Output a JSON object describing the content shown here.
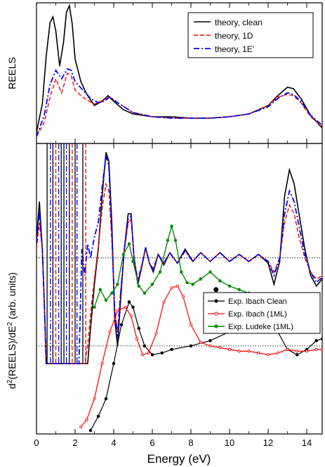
{
  "colors": {
    "clean": "#000000",
    "d1": "#ff0000",
    "e1": "#0000ff",
    "ibach_clean": "#000000",
    "ibach_1ml": "#ff0000",
    "ludeke_1ml": "#008c00"
  },
  "chart_data": [
    {
      "type": "line",
      "panel": "top",
      "ylabel": "REELS",
      "xlim": [
        0,
        14.8
      ],
      "ylim": [
        0,
        1.0
      ],
      "grid": false,
      "legend_position": "top-right",
      "series": [
        {
          "name": "theory, clean",
          "style": "solid",
          "x": [
            0,
            0.3,
            0.5,
            0.7,
            0.85,
            1.0,
            1.2,
            1.4,
            1.55,
            1.7,
            1.85,
            2.0,
            2.3,
            2.6,
            3.0,
            3.4,
            3.7,
            4.0,
            4.5,
            5.0,
            6.0,
            7.0,
            8.0,
            9.0,
            10.0,
            11.0,
            12.0,
            12.5,
            13.0,
            13.3,
            13.7,
            14.2,
            14.8
          ],
          "y": [
            0.08,
            0.28,
            0.62,
            0.86,
            0.9,
            0.8,
            0.55,
            0.72,
            0.93,
            0.98,
            0.85,
            0.6,
            0.44,
            0.35,
            0.27,
            0.3,
            0.34,
            0.3,
            0.24,
            0.21,
            0.19,
            0.19,
            0.18,
            0.18,
            0.19,
            0.21,
            0.27,
            0.34,
            0.4,
            0.39,
            0.32,
            0.2,
            0.11
          ]
        },
        {
          "name": "theory, 1D",
          "style": "dashed",
          "x": [
            0,
            0.4,
            0.7,
            1.0,
            1.3,
            1.6,
            1.8,
            2.0,
            2.3,
            2.6,
            3.0,
            3.5,
            3.8,
            4.2,
            5.0,
            6.0,
            7.0,
            8.0,
            9.0,
            10.0,
            11.0,
            12.0,
            12.5,
            13.0,
            13.3,
            13.7,
            14.2,
            14.8
          ],
          "y": [
            0.05,
            0.15,
            0.33,
            0.46,
            0.36,
            0.5,
            0.48,
            0.38,
            0.34,
            0.31,
            0.28,
            0.31,
            0.33,
            0.29,
            0.22,
            0.19,
            0.18,
            0.18,
            0.18,
            0.19,
            0.21,
            0.27,
            0.33,
            0.35,
            0.34,
            0.29,
            0.19,
            0.12
          ]
        },
        {
          "name": "theory, 1E'",
          "style": "dash-dot",
          "x": [
            0,
            0.4,
            0.7,
            1.0,
            1.3,
            1.6,
            1.8,
            2.0,
            2.4,
            2.8,
            3.2,
            3.5,
            3.8,
            4.2,
            5.0,
            6.0,
            7.0,
            8.0,
            9.0,
            10.0,
            11.0,
            12.0,
            12.5,
            13.0,
            13.3,
            13.7,
            14.2,
            14.8
          ],
          "y": [
            0.05,
            0.2,
            0.42,
            0.52,
            0.46,
            0.53,
            0.52,
            0.44,
            0.38,
            0.32,
            0.29,
            0.3,
            0.33,
            0.29,
            0.22,
            0.19,
            0.18,
            0.18,
            0.18,
            0.19,
            0.21,
            0.26,
            0.32,
            0.36,
            0.35,
            0.3,
            0.2,
            0.13
          ]
        }
      ]
    },
    {
      "type": "line",
      "panel": "bottom",
      "ylabel": "d²(REELS)/dE² (arb. units)",
      "xlabel": "Energy (eV)",
      "xlim": [
        0,
        14.8
      ],
      "xticks": [
        0,
        2,
        4,
        6,
        8,
        10,
        12,
        14
      ],
      "grid": false,
      "legend_position": "top-right",
      "annotation_point": {
        "x": 9.3,
        "y": -0.18
      },
      "theory_series": [
        {
          "name": "theory, clean",
          "style": "solid",
          "x": [
            0,
            0.15,
            0.3,
            0.42,
            0.5,
            2.65,
            2.8,
            3.0,
            3.2,
            3.4,
            3.6,
            3.75,
            3.9,
            4.05,
            4.2,
            4.35,
            4.55,
            4.75,
            4.9,
            5.05,
            5.25,
            5.45,
            5.65,
            5.85,
            6.05,
            6.3,
            6.6,
            6.9,
            7.3,
            7.7,
            8.1,
            8.5,
            9.0,
            9.5,
            10.0,
            10.5,
            11.0,
            11.5,
            12.0,
            12.3,
            12.6,
            12.85,
            13.1,
            13.35,
            13.6,
            13.9,
            14.2,
            14.5,
            14.8
          ],
          "y": [
            0.1,
            0.32,
            0.05,
            -0.3,
            -0.6,
            -0.6,
            -0.4,
            -0.15,
            0.05,
            0.35,
            0.6,
            0.55,
            0.2,
            -0.35,
            -0.5,
            -0.25,
            0.05,
            0.25,
            0.25,
            0.0,
            -0.15,
            -0.05,
            0.06,
            -0.03,
            -0.08,
            0.02,
            -0.04,
            0.03,
            -0.03,
            0.05,
            -0.02,
            0.03,
            -0.02,
            0.03,
            -0.02,
            0.02,
            -0.02,
            0.02,
            -0.03,
            -0.15,
            -0.02,
            0.35,
            0.5,
            0.42,
            0.25,
            0.05,
            -0.1,
            -0.16,
            -0.12
          ]
        },
        {
          "name": "theory, 1D",
          "style": "dashed",
          "x": [
            0,
            0.15,
            0.3,
            0.42,
            0.5,
            2.5,
            2.65,
            2.8,
            3.0,
            3.2,
            3.4,
            3.6,
            3.75,
            3.9,
            4.05,
            4.2,
            4.35,
            4.55,
            4.75,
            4.9,
            5.05,
            5.25,
            5.45,
            5.65,
            5.85,
            6.05,
            6.3,
            6.6,
            6.9,
            7.3,
            7.7,
            8.1,
            8.5,
            9.0,
            9.5,
            10.0,
            10.5,
            11.0,
            11.5,
            12.0,
            12.3,
            12.6,
            12.85,
            13.1,
            13.35,
            13.6,
            13.9,
            14.2,
            14.5,
            14.8
          ],
          "y": [
            0.05,
            0.2,
            0.05,
            -0.3,
            -0.6,
            -0.6,
            -0.5,
            -0.32,
            -0.12,
            0.06,
            0.28,
            0.42,
            0.38,
            0.1,
            -0.3,
            -0.42,
            -0.2,
            0.04,
            0.2,
            0.22,
            0.0,
            -0.12,
            -0.04,
            0.05,
            -0.03,
            -0.06,
            0.02,
            -0.03,
            0.03,
            -0.03,
            0.04,
            -0.02,
            0.03,
            -0.02,
            0.03,
            -0.02,
            0.02,
            -0.02,
            0.02,
            -0.02,
            -0.08,
            0.0,
            0.2,
            0.3,
            0.25,
            0.12,
            0.0,
            -0.08,
            -0.12,
            -0.1
          ]
        },
        {
          "name": "theory, 1E'",
          "style": "dash-dot",
          "x": [
            0,
            0.15,
            0.3,
            0.42,
            0.5,
            2.2,
            2.35,
            2.5,
            2.65,
            2.8,
            3.0,
            3.2,
            3.4,
            3.6,
            3.75,
            3.9,
            4.05,
            4.2,
            4.35,
            4.55,
            4.75,
            4.9,
            5.05,
            5.25,
            5.45,
            5.65,
            5.85,
            6.05,
            6.3,
            6.6,
            6.9,
            7.3,
            7.7,
            8.1,
            8.5,
            9.0,
            9.5,
            10.0,
            10.5,
            11.0,
            11.5,
            12.0,
            12.3,
            12.6,
            12.85,
            13.1,
            13.35,
            13.6,
            13.9,
            14.2,
            14.5,
            14.8
          ],
          "y": [
            0.08,
            0.26,
            0.05,
            -0.3,
            -0.6,
            -0.6,
            0.05,
            -0.1,
            0.08,
            0.0,
            0.12,
            0.2,
            0.4,
            0.58,
            0.52,
            0.15,
            -0.3,
            -0.45,
            -0.22,
            0.05,
            0.22,
            0.24,
            0.0,
            -0.14,
            -0.05,
            0.06,
            -0.03,
            -0.07,
            0.02,
            -0.03,
            0.03,
            -0.03,
            0.04,
            -0.02,
            0.03,
            -0.02,
            0.03,
            -0.02,
            0.02,
            -0.02,
            0.02,
            -0.02,
            -0.1,
            0.0,
            0.25,
            0.38,
            0.32,
            0.18,
            0.02,
            -0.08,
            -0.14,
            -0.11
          ]
        }
      ],
      "experiment_series": [
        {
          "name": "Exp. Ibach Clean",
          "x": [
            2.8,
            3.2,
            3.6,
            4.0,
            4.4,
            4.8,
            5.0,
            5.3,
            5.6,
            6.0,
            6.5,
            7.0,
            8.0,
            9.0,
            10.0,
            10.5,
            11.0,
            11.5,
            12.0,
            12.5,
            13.0,
            13.5,
            14.0,
            14.5,
            14.8
          ],
          "y": [
            -0.98,
            -0.9,
            -0.8,
            -0.6,
            -0.38,
            -0.25,
            -0.28,
            -0.4,
            -0.5,
            -0.55,
            -0.54,
            -0.52,
            -0.5,
            -0.47,
            -0.42,
            -0.37,
            -0.32,
            -0.31,
            -0.33,
            -0.42,
            -0.52,
            -0.55,
            -0.52,
            -0.47,
            -0.46
          ]
        },
        {
          "name": "Exp. Ibach (1ML)",
          "x": [
            2.3,
            2.6,
            3.0,
            3.4,
            3.8,
            4.2,
            4.6,
            4.9,
            5.2,
            5.5,
            5.8,
            6.2,
            6.6,
            7.0,
            7.3,
            7.6,
            8.0,
            8.5,
            9.0,
            9.5,
            10.0,
            10.5,
            11.0,
            11.5,
            12.0,
            12.5,
            13.0,
            13.5,
            14.0,
            14.5,
            14.8
          ],
          "y": [
            -0.96,
            -0.92,
            -0.8,
            -0.6,
            -0.42,
            -0.3,
            -0.28,
            -0.33,
            -0.46,
            -0.55,
            -0.54,
            -0.43,
            -0.25,
            -0.17,
            -0.16,
            -0.22,
            -0.38,
            -0.48,
            -0.5,
            -0.51,
            -0.52,
            -0.53,
            -0.53,
            -0.54,
            -0.55,
            -0.54,
            -0.52,
            -0.53,
            -0.53,
            -0.52,
            -0.52
          ]
        },
        {
          "name": "Exp. Ludeke (1ML)",
          "x": [
            3.0,
            3.3,
            3.6,
            3.9,
            4.2,
            4.5,
            4.8,
            5.0,
            5.3,
            5.6,
            6.0,
            6.4,
            6.8,
            7.0,
            7.2,
            7.5,
            7.8,
            8.1,
            8.5,
            9.0,
            9.5,
            10.0,
            10.5,
            11.0,
            11.5,
            12.0,
            12.5
          ],
          "y": [
            -0.28,
            -0.18,
            -0.24,
            -0.2,
            -0.15,
            0.02,
            0.08,
            -0.02,
            -0.16,
            -0.2,
            -0.15,
            -0.08,
            0.1,
            0.18,
            0.1,
            -0.08,
            -0.14,
            -0.15,
            -0.12,
            -0.08,
            -0.13,
            -0.16,
            -0.18,
            -0.2,
            -0.21,
            -0.22,
            -0.22
          ]
        }
      ],
      "ylim": [
        -1.0,
        0.65
      ],
      "reference_lines_y": [
        0.0,
        -0.5
      ]
    }
  ]
}
